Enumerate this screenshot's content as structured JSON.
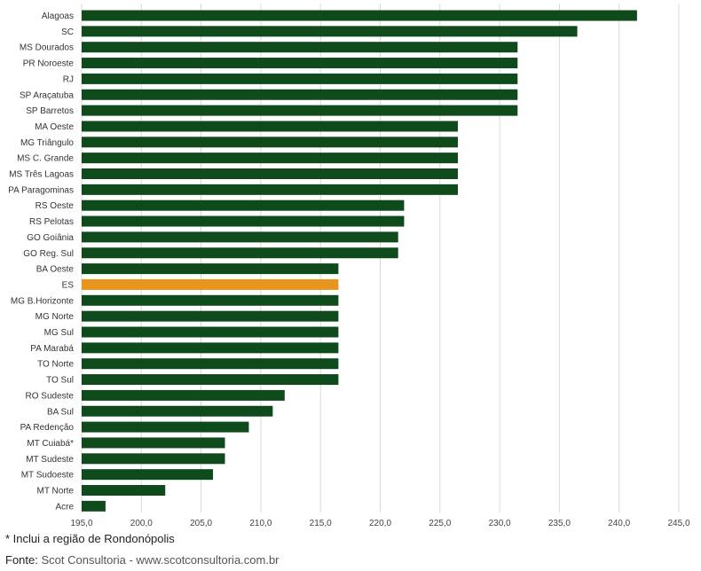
{
  "chart_data": {
    "type": "bar",
    "orientation": "horizontal",
    "categories": [
      "Alagoas",
      "SC",
      "MS Dourados",
      "PR Noroeste",
      "RJ",
      "SP Araçatuba",
      "SP Barretos",
      "MA Oeste",
      "MG Triângulo",
      "MS C. Grande",
      "MS Três Lagoas",
      "PA Paragominas",
      "RS Oeste",
      "RS Pelotas",
      "GO Goiânia",
      "GO Reg. Sul",
      "BA Oeste",
      "ES",
      "MG B.Horizonte",
      "MG Norte",
      "MG Sul",
      "PA Marabá",
      "TO Norte",
      "TO Sul",
      "RO Sudeste",
      "BA Sul",
      "PA Redenção",
      "MT Cuiabá*",
      "MT Sudeste",
      "MT Sudoeste",
      "MT Norte",
      "Acre"
    ],
    "values": [
      241.5,
      236.5,
      231.5,
      231.5,
      231.5,
      231.5,
      231.5,
      226.5,
      226.5,
      226.5,
      226.5,
      226.5,
      222.0,
      222.0,
      221.5,
      221.5,
      216.5,
      216.5,
      216.5,
      216.5,
      216.5,
      216.5,
      216.5,
      216.5,
      212.0,
      211.0,
      209.0,
      207.0,
      207.0,
      206.0,
      202.0,
      197.0
    ],
    "highlight_category": "ES",
    "colors": {
      "bar": "#0f4a1c",
      "highlight": "#e8951e",
      "grid": "#d9d9d9"
    },
    "xlim": [
      195,
      245
    ],
    "xticks": [
      "195,0",
      "200,0",
      "205,0",
      "210,0",
      "215,0",
      "220,0",
      "225,0",
      "230,0",
      "235,0",
      "240,0",
      "245,0"
    ],
    "xtick_values": [
      195,
      200,
      205,
      210,
      215,
      220,
      225,
      230,
      235,
      240,
      245
    ],
    "grid": "vertical",
    "title": "",
    "xlabel": "",
    "ylabel": ""
  },
  "footnote": "* Inclui a região de Rondonópolis",
  "source": {
    "label": "Fonte:",
    "text": " Scot Consultoria - www.scotconsultoria.com.br"
  }
}
